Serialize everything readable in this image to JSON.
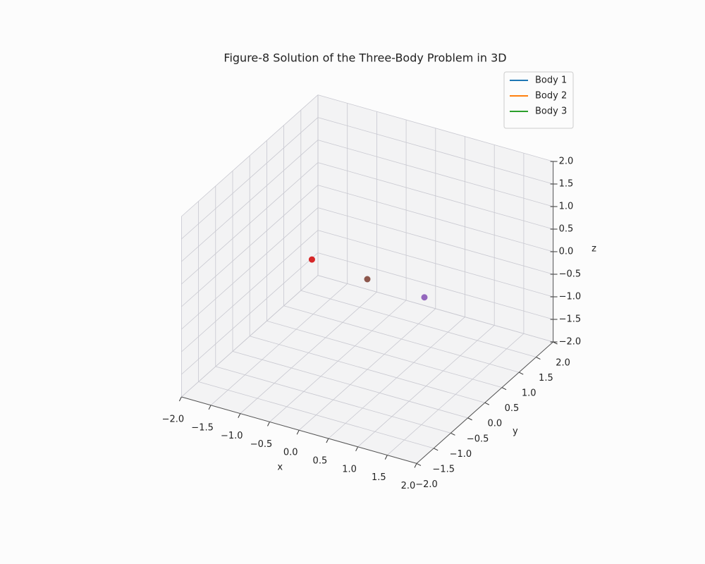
{
  "chart_data": {
    "type": "scatter3d",
    "title": "Figure-8 Solution of the Three-Body Problem in 3D",
    "xlabel": "x",
    "ylabel": "y",
    "zlabel": "z",
    "xlim": [
      -2,
      2
    ],
    "ylim": [
      -2,
      2
    ],
    "zlim": [
      -2,
      2
    ],
    "xticks": [
      {
        "value": -2,
        "label": "−2.0"
      },
      {
        "value": -1.5,
        "label": "−1.5"
      },
      {
        "value": -1,
        "label": "−1.0"
      },
      {
        "value": -0.5,
        "label": "−0.5"
      },
      {
        "value": 0,
        "label": "0.0"
      },
      {
        "value": 0.5,
        "label": "0.5"
      },
      {
        "value": 1,
        "label": "1.0"
      },
      {
        "value": 1.5,
        "label": "1.5"
      },
      {
        "value": 2,
        "label": "2.0"
      }
    ],
    "yticks": [
      {
        "value": -2,
        "label": "−2.0"
      },
      {
        "value": -1.5,
        "label": "−1.5"
      },
      {
        "value": -1,
        "label": "−1.0"
      },
      {
        "value": -0.5,
        "label": "−0.5"
      },
      {
        "value": 0,
        "label": "0.0"
      },
      {
        "value": 0.5,
        "label": "0.5"
      },
      {
        "value": 1,
        "label": "1.0"
      },
      {
        "value": 1.5,
        "label": "1.5"
      },
      {
        "value": 2,
        "label": "2.0"
      }
    ],
    "zticks": [
      {
        "value": -2,
        "label": "−2.0"
      },
      {
        "value": -1.5,
        "label": "−1.5"
      },
      {
        "value": -1,
        "label": "−1.0"
      },
      {
        "value": -0.5,
        "label": "−0.5"
      },
      {
        "value": 0,
        "label": "0.0"
      },
      {
        "value": 0.5,
        "label": "0.5"
      },
      {
        "value": 1,
        "label": "1.0"
      },
      {
        "value": 1.5,
        "label": "1.5"
      },
      {
        "value": 2,
        "label": "2.0"
      }
    ],
    "grid": true,
    "legend": "upper right",
    "series": [
      {
        "name": "Body 1",
        "color": "#1f77b4",
        "marker_color": "#d62728",
        "x": [
          -1.0
        ],
        "y": [
          0.1
        ],
        "z": [
          0
        ]
      },
      {
        "name": "Body 2",
        "color": "#ff7f0e",
        "marker_color": "#8c564b",
        "x": [
          0
        ],
        "y": [
          0
        ],
        "z": [
          0
        ]
      },
      {
        "name": "Body 3",
        "color": "#2ca02c",
        "marker_color": "#9467bd",
        "x": [
          1.0
        ],
        "y": [
          -0.05
        ],
        "z": [
          0
        ]
      }
    ]
  }
}
